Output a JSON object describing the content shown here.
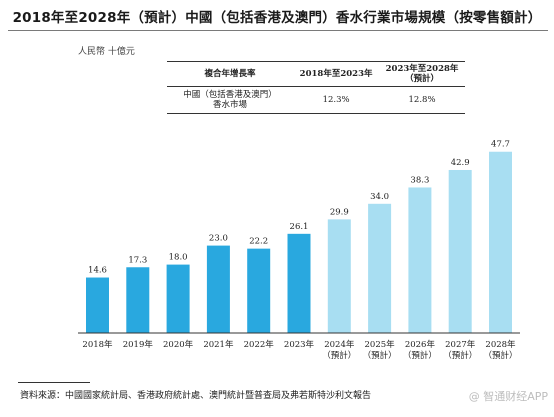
{
  "title": "2018年至2028年（預計）中國（包括香港及澳門）香水行業市場規模（按零售額計）",
  "unit_label": "人民幣 十億元",
  "cagr_table": {
    "headers": [
      "複合年增長率",
      "2018年至2023年",
      "2023年至2028年\n（預計）"
    ],
    "rows": [
      {
        "label": "中國（包括香港及澳門）\n香水市場",
        "v1": "12.3%",
        "v2": "12.8%"
      }
    ]
  },
  "chart_data": {
    "type": "bar",
    "categories": [
      "2018年",
      "2019年",
      "2020年",
      "2021年",
      "2022年",
      "2023年",
      "2024年\n（預計）",
      "2025年\n（預計）",
      "2026年\n（預計）",
      "2027年\n（預計）",
      "2028年\n（預計）"
    ],
    "values": [
      14.6,
      17.3,
      18.0,
      23.0,
      22.2,
      26.1,
      29.9,
      34.0,
      38.3,
      42.9,
      47.7
    ],
    "value_labels": [
      "14.6",
      "17.3",
      "18.0",
      "23.0",
      "22.2",
      "26.1",
      "29.9",
      "34.0",
      "38.3",
      "42.9",
      "47.7"
    ],
    "bar_colors": [
      "#29a8df",
      "#29a8df",
      "#29a8df",
      "#29a8df",
      "#29a8df",
      "#29a8df",
      "#a8def2",
      "#a8def2",
      "#a8def2",
      "#a8def2",
      "#a8def2"
    ],
    "ylim": [
      0,
      50
    ],
    "grid": false,
    "title": "2018年至2028年（預計）中國（包括香港及澳門）香水行業市場規模（按零售額計）",
    "ylabel": "人民幣 十億元"
  },
  "source": "資料來源：中國國家統計局、香港政府統計處、澳門統計暨普查局及弗若斯特沙利文報告",
  "watermark": "@ 智通财经APP"
}
